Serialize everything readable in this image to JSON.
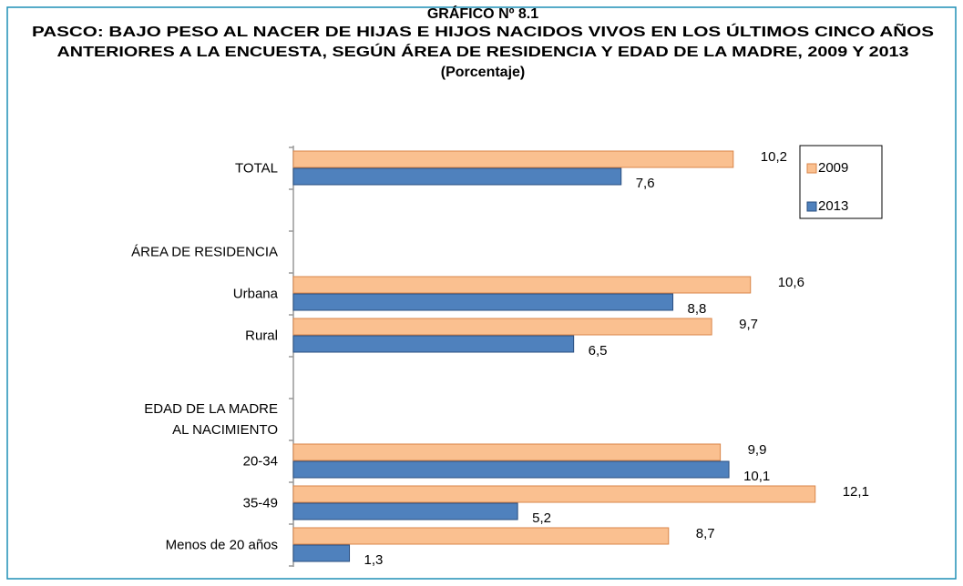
{
  "chart_data": {
    "type": "hbar",
    "title": "GRÁFICO Nº 8.1",
    "subtitle": [
      "PASCO: BAJO PESO AL NACER DE HIJAS E HIJOS NACIDOS VIVOS EN LOS ÚLTIMOS CINCO AÑOS",
      "ANTERIORES A LA ENCUESTA, SEGÚN ÁREA DE RESIDENCIA Y EDAD DE LA MADRE, 2009 Y 2013",
      "(Porcentaje)"
    ],
    "categories": [
      "TOTAL",
      null,
      "ÁREA DE RESIDENCIA",
      "Urbana",
      "Rural",
      null,
      "EDAD DE LA MADRE\nAL NACIMIENTO",
      "20-34",
      "35-49",
      "Menos de 20 años"
    ],
    "series": [
      {
        "name": "2009",
        "color": "#fac090",
        "stroke": "#d9864a",
        "values": [
          10.2,
          null,
          null,
          10.6,
          9.7,
          null,
          null,
          9.9,
          12.1,
          8.7
        ],
        "value_labels": [
          "10,2",
          null,
          null,
          "10,6",
          "9,7",
          null,
          null,
          "9,9",
          "12,1",
          "8,7"
        ]
      },
      {
        "name": "2013",
        "color": "#4f81bd",
        "stroke": "#2a4f80",
        "values": [
          7.6,
          null,
          null,
          8.8,
          6.5,
          null,
          null,
          10.1,
          5.2,
          1.3
        ],
        "value_labels": [
          "7,6",
          null,
          null,
          "8,8",
          "6,5",
          null,
          null,
          "10,1",
          "5,2",
          "1,3"
        ]
      }
    ],
    "xlim": [
      0,
      15
    ],
    "legend": "upper right"
  }
}
